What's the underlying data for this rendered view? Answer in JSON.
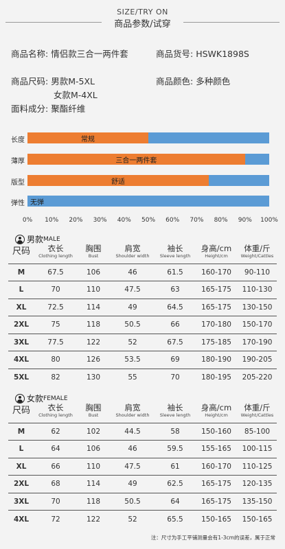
{
  "header": {
    "title_en": "SIZE/TRY ON",
    "title_zh": "商品参数/试穿"
  },
  "info": {
    "name_label": "商品名称:",
    "name_value": "情侣款三合一两件套",
    "code_label": "商品货号:",
    "code_value": "HSWK1898S",
    "size_label": "商品尺码:",
    "size_male": "男款M-5XL",
    "size_female": "女款M-4XL",
    "color_label": "商品颜色:",
    "color_value": "多种颜色",
    "fabric_label": "面料成分:",
    "fabric_value": "聚酯纤维"
  },
  "chart_data": {
    "type": "bar",
    "orientation": "horizontal",
    "categories": [
      "长度",
      "薄厚",
      "版型",
      "弹性"
    ],
    "values": [
      50,
      90,
      75,
      0
    ],
    "value_labels": [
      "常规",
      "三合一两件套",
      "舒适",
      "无弹"
    ],
    "xlim": [
      0,
      100
    ],
    "x_ticks": [
      "0%",
      "10%",
      "20%",
      "30%",
      "40%",
      "50%",
      "60%",
      "70%",
      "80%",
      "90%",
      "100%"
    ],
    "colors": {
      "fill": "#ed7d31",
      "track": "#5b9bd5"
    }
  },
  "male": {
    "title": "男款",
    "title_en": "MALE",
    "headers": [
      {
        "zh": "尺码",
        "en": ""
      },
      {
        "zh": "衣长",
        "en": "Clothing length"
      },
      {
        "zh": "胸围",
        "en": "Bust"
      },
      {
        "zh": "肩宽",
        "en": "Shoulder width"
      },
      {
        "zh": "袖长",
        "en": "Sleeve length"
      },
      {
        "zh": "身高/cm",
        "en": "Height/cm"
      },
      {
        "zh": "体重/斤",
        "en": "Weight/Cattles"
      }
    ],
    "rows": [
      [
        "M",
        "67.5",
        "106",
        "46",
        "61.5",
        "160-170",
        "90-110"
      ],
      [
        "L",
        "70",
        "110",
        "47.5",
        "63",
        "165-175",
        "110-130"
      ],
      [
        "XL",
        "72.5",
        "114",
        "49",
        "64.5",
        "165-175",
        "130-150"
      ],
      [
        "2XL",
        "75",
        "118",
        "50.5",
        "66",
        "170-180",
        "150-170"
      ],
      [
        "3XL",
        "77.5",
        "122",
        "52",
        "67.5",
        "175-185",
        "170-190"
      ],
      [
        "4XL",
        "80",
        "126",
        "53.5",
        "69",
        "180-190",
        "190-205"
      ],
      [
        "5XL",
        "82",
        "130",
        "55",
        "70",
        "180-195",
        "205-220"
      ]
    ]
  },
  "female": {
    "title": "女款",
    "title_en": "FEMALE",
    "headers": [
      {
        "zh": "尺码",
        "en": ""
      },
      {
        "zh": "衣长",
        "en": "Clothing length"
      },
      {
        "zh": "胸围",
        "en": "Bust"
      },
      {
        "zh": "肩宽",
        "en": "Shoulder width"
      },
      {
        "zh": "袖长",
        "en": "Sleeve length"
      },
      {
        "zh": "身高/cm",
        "en": "Height/cm"
      },
      {
        "zh": "体重/斤",
        "en": "Weight/Cattles"
      }
    ],
    "rows": [
      [
        "M",
        "62",
        "102",
        "44.5",
        "58",
        "150-160",
        "85-100"
      ],
      [
        "L",
        "64",
        "106",
        "46",
        "59.5",
        "155-165",
        "100-115"
      ],
      [
        "XL",
        "66",
        "110",
        "47.5",
        "61",
        "160-170",
        "110-125"
      ],
      [
        "2XL",
        "68",
        "114",
        "49",
        "62.5",
        "165-175",
        "120-135"
      ],
      [
        "3XL",
        "70",
        "118",
        "50.5",
        "64",
        "165-175",
        "135-150"
      ],
      [
        "4XL",
        "72",
        "122",
        "52",
        "65.5",
        "150-165",
        "150-165"
      ]
    ]
  },
  "note": "注：尺寸为手工平铺测量会有1-3cm的误差，属于正常"
}
